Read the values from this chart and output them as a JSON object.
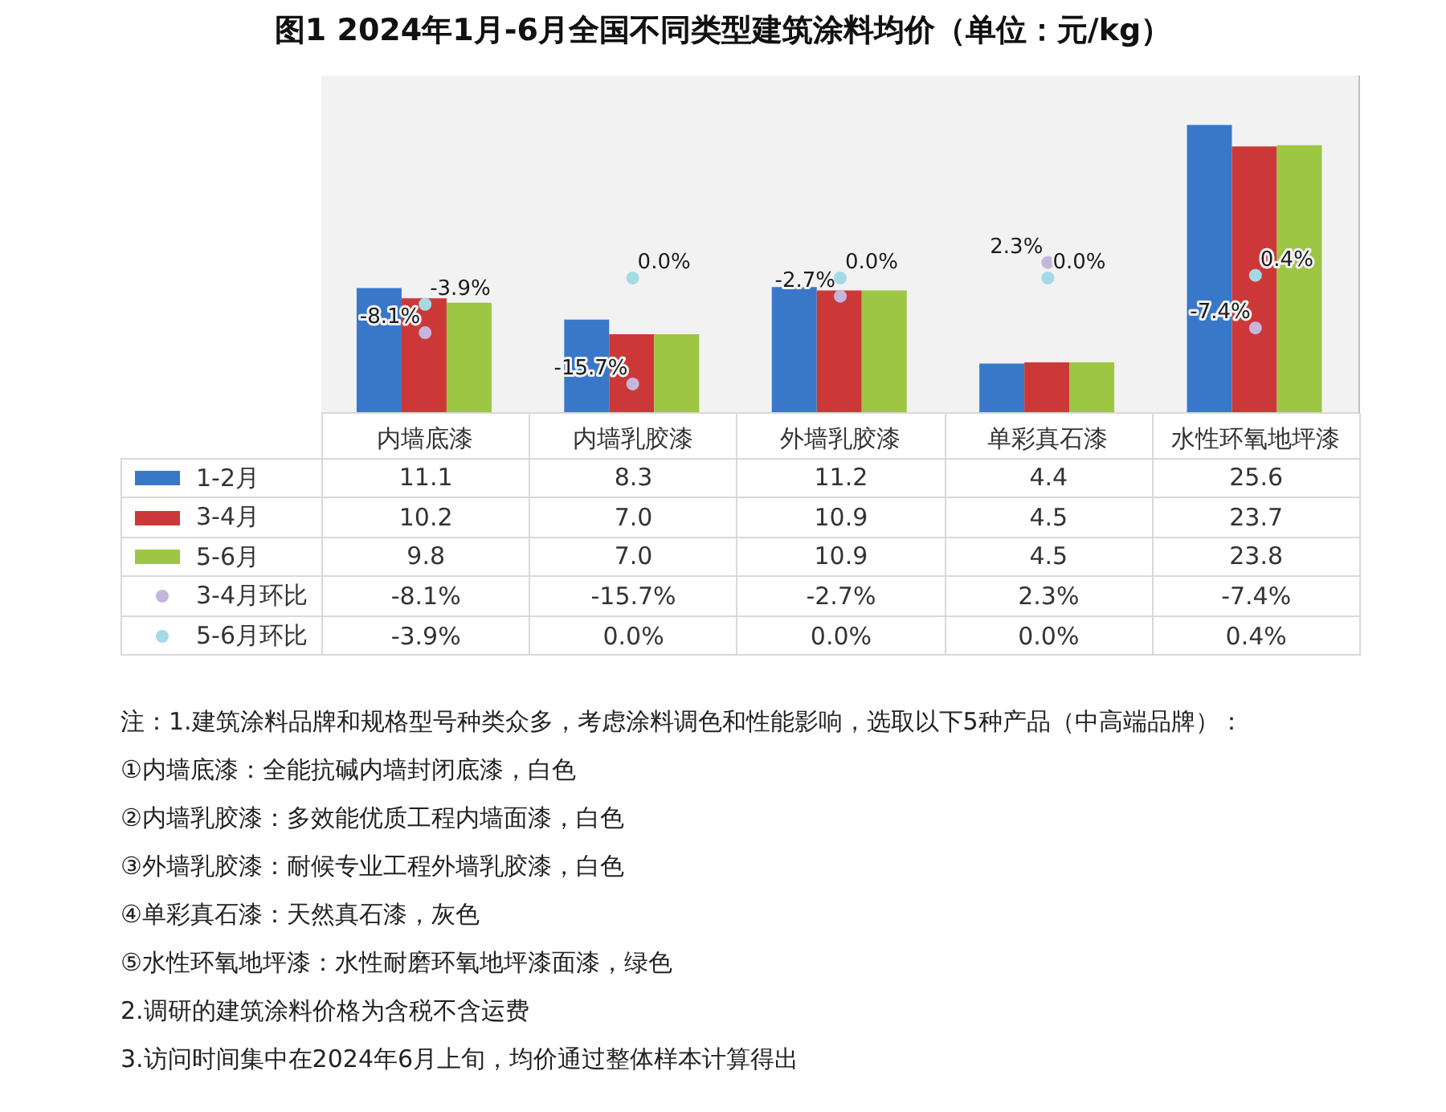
{
  "chart_data": {
    "type": "bar",
    "title": "图1 2024年1月-6月全国不同类型建筑涂料均价（单位：元/kg）",
    "categories": [
      "内墙底漆",
      "内墙乳胶漆",
      "外墙乳胶漆",
      "单彩真石漆",
      "水性环氧地坪漆"
    ],
    "series": [
      {
        "name": "1-2月",
        "color": "#3978c9",
        "values": [
          11.1,
          8.3,
          11.2,
          4.4,
          25.6
        ],
        "value_labels": [
          "11.1",
          "8.3",
          "11.2",
          "4.4",
          "25.6"
        ]
      },
      {
        "name": "3-4月",
        "color": "#cc3838",
        "values": [
          10.2,
          7.0,
          10.9,
          4.5,
          23.7
        ],
        "value_labels": [
          "10.2",
          "7.0",
          "10.9",
          "4.5",
          "23.7"
        ]
      },
      {
        "name": "5-6月",
        "color": "#9cc643",
        "values": [
          9.8,
          7.0,
          10.9,
          4.5,
          23.8
        ],
        "value_labels": [
          "9.8",
          "7.0",
          "10.9",
          "4.5",
          "23.8"
        ]
      },
      {
        "name": "3-4月环比",
        "type": "scatter",
        "axis": "y2",
        "color": "#c5b6dc",
        "values": [
          -8.1,
          -15.7,
          -2.7,
          2.3,
          -7.4
        ],
        "value_labels": [
          "-8.1%",
          "-15.7%",
          "-2.7%",
          "2.3%",
          "-7.4%"
        ]
      },
      {
        "name": "5-6月环比",
        "type": "scatter",
        "axis": "y2",
        "color": "#a6d9e6",
        "values": [
          -3.9,
          0.0,
          0.0,
          0.0,
          0.4
        ],
        "value_labels": [
          "-3.9%",
          "0.0%",
          "0.0%",
          "0.0%",
          "0.4%"
        ]
      }
    ],
    "ylim": [
      0,
      30
    ],
    "y2lim": [
      -20,
      30
    ],
    "tick_labels": "x",
    "legend": "bottom",
    "marker": "circle",
    "annotations": [
      "注：1.建筑涂料品牌和规格型号种类众多，考虑涂料调色和性能影响，选取以下5种产品（中高端品牌）：",
      "①内墙底漆：全能抗碱内墙封闭底漆，白色",
      "②内墙乳胶漆：多效能优质工程内墙面漆，白色",
      "③外墙乳胶漆：耐候专业工程外墙乳胶漆，白色",
      "④单彩真石漆：天然真石漆，灰色",
      "⑤水性环氧地坪漆：水性耐磨环氧地坪漆面漆，绿色",
      "2.调研的建筑涂料价格为含税不含运费",
      "3.访问时间集中在2024年6月上旬，均价通过整体样本计算得出"
    ]
  }
}
